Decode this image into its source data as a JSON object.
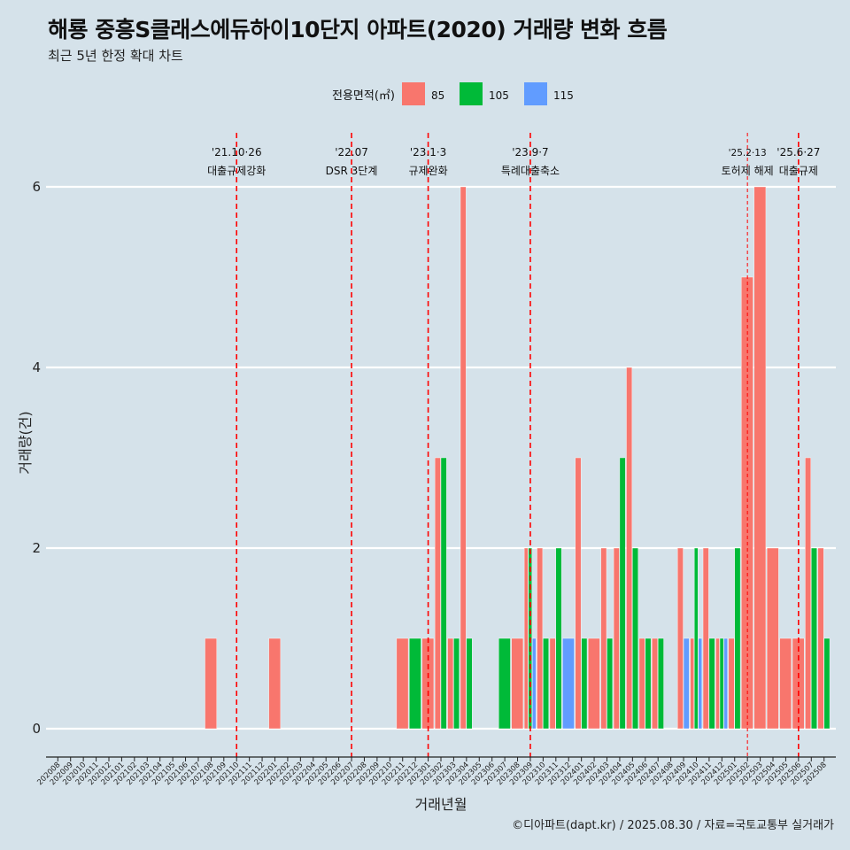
{
  "title": "해룡 중흥S클래스에듀하이10단지 아파트(2020) 거래량 변화 흐름",
  "subtitle": "최근 5년 한정 확대 차트",
  "caption": "©디아파트(dapt.kr) / 2025.08.30 / 자료=국토교통부 실거래가",
  "chart_data": {
    "type": "bar",
    "xlabel": "거래년월",
    "ylabel": "거래량(건)",
    "ylim": [
      0,
      6
    ],
    "yticks": [
      0,
      2,
      4,
      6
    ],
    "grid": true,
    "legend": {
      "title": "전용면적(㎡)",
      "position": "top"
    },
    "categories": [
      "202008",
      "202009",
      "202010",
      "202011",
      "202012",
      "202101",
      "202102",
      "202103",
      "202104",
      "202105",
      "202106",
      "202107",
      "202108",
      "202109",
      "202110",
      "202111",
      "202112",
      "202201",
      "202202",
      "202203",
      "202204",
      "202205",
      "202206",
      "202207",
      "202208",
      "202209",
      "202210",
      "202211",
      "202212",
      "202301",
      "202302",
      "202303",
      "202304",
      "202305",
      "202306",
      "202307",
      "202308",
      "202309",
      "202310",
      "202311",
      "202312",
      "202401",
      "202402",
      "202403",
      "202404",
      "202405",
      "202406",
      "202407",
      "202408",
      "202409",
      "202410",
      "202411",
      "202412",
      "202501",
      "202502",
      "202503",
      "202504",
      "202505",
      "202506",
      "202507",
      "202508"
    ],
    "series": [
      {
        "name": "85",
        "color": "#f8766d",
        "values": [
          0,
          0,
          0,
          0,
          0,
          0,
          0,
          0,
          0,
          0,
          0,
          0,
          1,
          0,
          0,
          0,
          0,
          1,
          0,
          0,
          0,
          0,
          0,
          0,
          0,
          0,
          0,
          1,
          0,
          1,
          3,
          1,
          6,
          0,
          0,
          0,
          1,
          2,
          2,
          1,
          0,
          3,
          1,
          2,
          2,
          4,
          1,
          1,
          0,
          2,
          1,
          2,
          1,
          1,
          5,
          6,
          2,
          1,
          1,
          3,
          2
        ]
      },
      {
        "name": "105",
        "color": "#00ba38",
        "values": [
          0,
          0,
          0,
          0,
          0,
          0,
          0,
          0,
          0,
          0,
          0,
          0,
          0,
          0,
          0,
          0,
          0,
          0,
          0,
          0,
          0,
          0,
          0,
          0,
          0,
          0,
          0,
          0,
          1,
          0,
          3,
          1,
          1,
          0,
          0,
          1,
          0,
          2,
          1,
          2,
          0,
          1,
          0,
          1,
          3,
          2,
          1,
          1,
          0,
          0,
          2,
          1,
          1,
          2,
          0,
          0,
          0,
          0,
          0,
          2,
          1
        ]
      },
      {
        "name": "115",
        "color": "#619cff",
        "values": [
          0,
          0,
          0,
          0,
          0,
          0,
          0,
          0,
          0,
          0,
          0,
          0,
          0,
          0,
          0,
          0,
          0,
          0,
          0,
          0,
          0,
          0,
          0,
          0,
          0,
          0,
          0,
          0,
          0,
          0,
          0,
          0,
          0,
          0,
          0,
          0,
          0,
          1,
          0,
          0,
          1,
          0,
          0,
          0,
          0,
          0,
          0,
          0,
          0,
          1,
          1,
          0,
          1,
          0,
          0,
          0,
          0,
          0,
          0,
          0,
          0
        ]
      }
    ],
    "annotations": [
      {
        "date_label": "'21.10·26",
        "text": "대출규제강화",
        "x": "202110"
      },
      {
        "date_label": "'22.07",
        "text": "DSR 3단계",
        "x": "202207"
      },
      {
        "date_label": "'23.1·3",
        "text": "규제완화",
        "x": "202301"
      },
      {
        "date_label": "'23.9·7",
        "text": "특례대출축소",
        "x": "202309"
      },
      {
        "date_label": "'25.2·13",
        "text": "토허제 해제",
        "x": "202502"
      },
      {
        "date_label": "'25.6·27",
        "text": "대출규제",
        "x": "202506"
      }
    ]
  }
}
